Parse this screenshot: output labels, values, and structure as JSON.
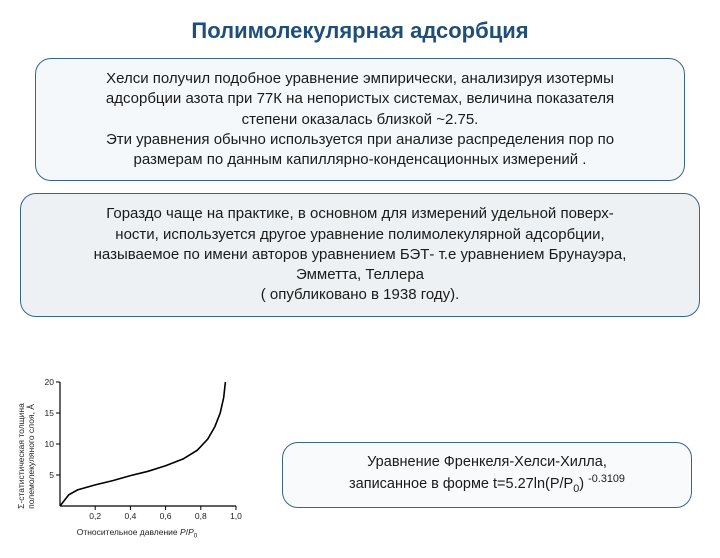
{
  "title": "Полимолекулярная адсорбция",
  "box1": {
    "line1": "Хелси получил подобное уравнение эмпирически, анализируя изотермы",
    "line2": "адсорбции азота при 77К на непористых системах, величина показателя",
    "line3": "степени оказалась близкой ~2.75.",
    "line4": "Эти уравнения обычно используется при анализе распределения пор по",
    "line5": "размерам по данным капиллярно-конденсационных измерений ."
  },
  "box2": {
    "line1": "Гораздо чаще на практике, в основном для измерений удельной поверх-",
    "line2": "ности, используется другое уравнение полимолекулярной адсорбции,",
    "line3": "называемое по имени авторов уравнением БЭТ- т.е уравнением Брунауэра,",
    "line4": "Эмметта, Теллера",
    "line5": "( опубликовано в 1938 году)."
  },
  "box3": {
    "line1": "Уравнение Френкеля-Хелси-Хилла,",
    "line2_prefix": "записанное в форме t=5.27ln(P/P",
    "line2_sub": "0",
    "line2_mid": ") ",
    "line2_sup": "-0.3109"
  },
  "chart": {
    "type": "line",
    "xlabel_prefix": "Относительное давление ",
    "xlabel_italic": "P",
    "xlabel_slash": "/",
    "xlabel_italic2": "P",
    "xlabel_sub": "0",
    "ylabel_prefix": "Σ-статистическая толщина",
    "ylabel_line2": "полемолекуляного слоя, Å",
    "xlim": [
      0,
      1.0
    ],
    "ylim": [
      0,
      20
    ],
    "xtick_labels": [
      "0,2",
      "0,4",
      "0,6",
      "0,8",
      "1,0"
    ],
    "xtick_positions": [
      0.2,
      0.4,
      0.6,
      0.8,
      1.0
    ],
    "ytick_labels": [
      "5",
      "10",
      "15",
      "20"
    ],
    "ytick_positions": [
      5,
      10,
      15,
      20
    ],
    "axis_color": "#000000",
    "curve_color": "#000000",
    "curve_width": 1.6,
    "tick_fontsize": 8.5,
    "data": [
      [
        0.0,
        0.0
      ],
      [
        0.05,
        1.8
      ],
      [
        0.1,
        2.6
      ],
      [
        0.2,
        3.4
      ],
      [
        0.3,
        4.1
      ],
      [
        0.4,
        4.9
      ],
      [
        0.5,
        5.6
      ],
      [
        0.6,
        6.5
      ],
      [
        0.7,
        7.6
      ],
      [
        0.78,
        9.0
      ],
      [
        0.84,
        10.8
      ],
      [
        0.88,
        12.8
      ],
      [
        0.91,
        15.0
      ],
      [
        0.93,
        17.5
      ],
      [
        0.94,
        20.0
      ]
    ]
  },
  "colors": {
    "title_color": "#1f4e79",
    "box_border": "#39648f",
    "box1_bg": "#f4f8fb",
    "box2_bg": "#edf1f4",
    "box3_bg": "#f8fafc",
    "text": "#1a1a1a",
    "page_bg": "#ffffff"
  }
}
